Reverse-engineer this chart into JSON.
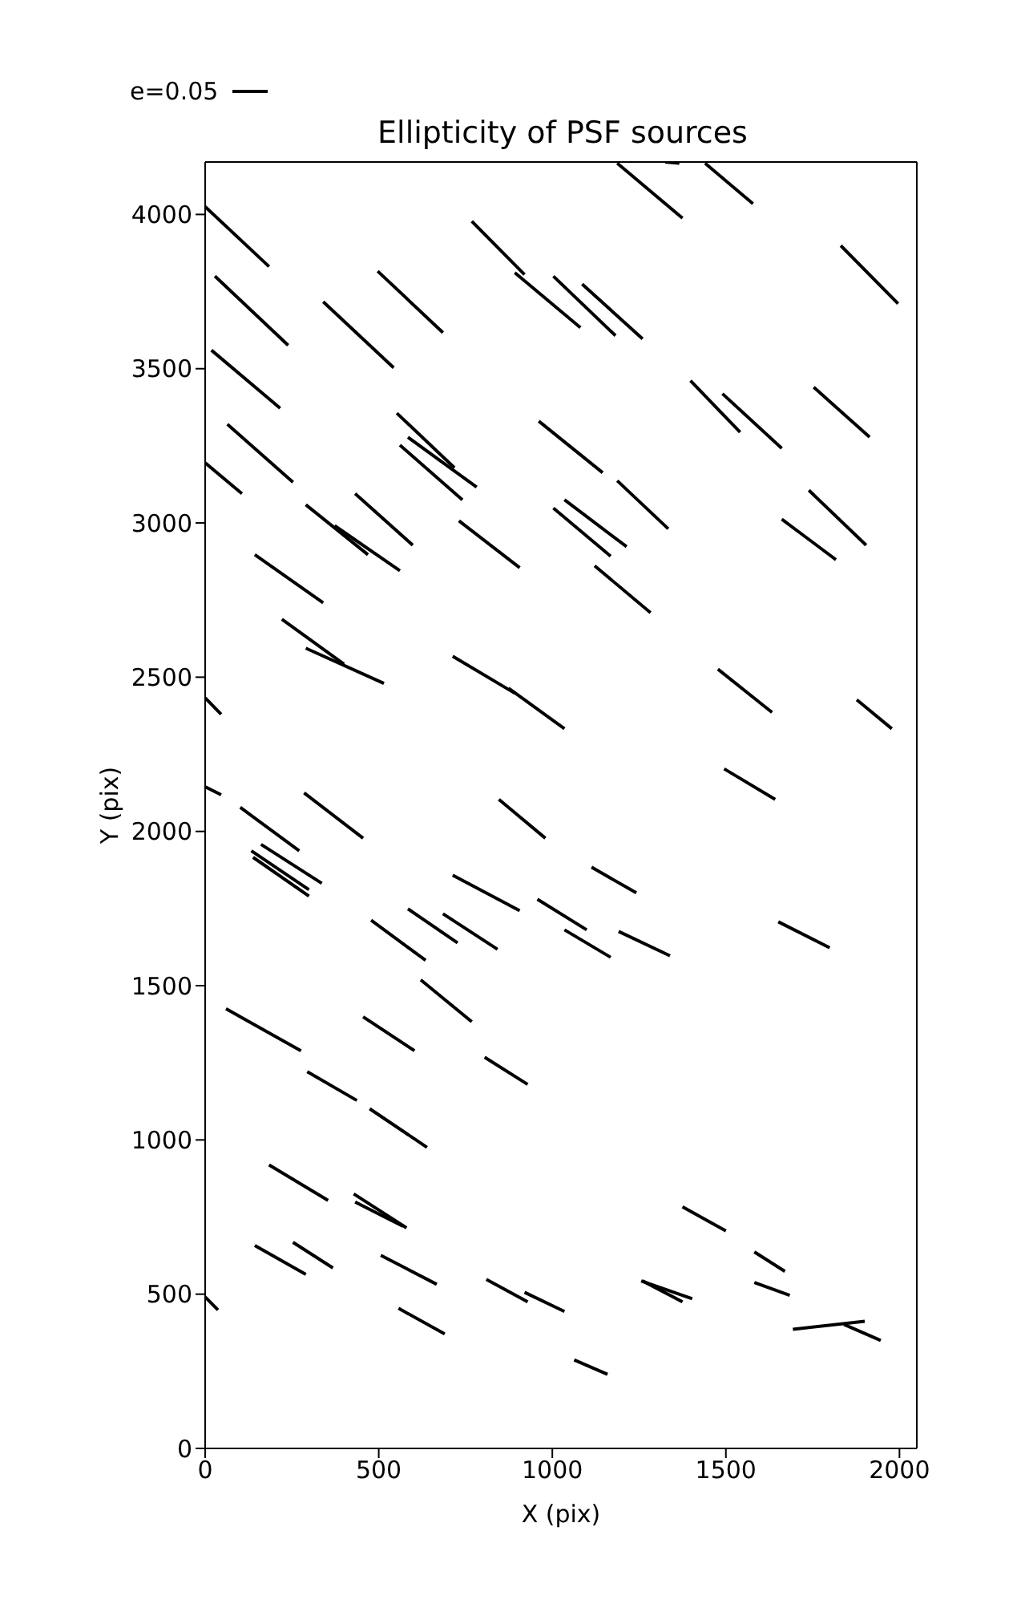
{
  "chart_data": {
    "type": "line",
    "title": "Ellipticity of PSF sources",
    "xlabel": "X (pix)",
    "ylabel": "Y (pix)",
    "annotations": [
      "e=0.05"
    ],
    "xlim": [
      0,
      2050
    ],
    "ylim": [
      0,
      4170
    ],
    "xticks": [
      0,
      500,
      1000,
      1500,
      2000
    ],
    "yticks": [
      0,
      500,
      1000,
      1500,
      2000,
      2500,
      3000,
      3500,
      4000
    ],
    "marker": "none",
    "series": [
      {
        "color": "#000000",
        "x": [
          0,
          184
        ],
        "values": [
          4025,
          3831
        ]
      },
      {
        "color": "#000000",
        "x": [
          28,
          239
        ],
        "values": [
          3800,
          3576
        ]
      },
      {
        "color": "#000000",
        "x": [
          18,
          216
        ],
        "values": [
          3560,
          3372
        ]
      },
      {
        "color": "#000000",
        "x": [
          64,
          253
        ],
        "values": [
          3320,
          3132
        ]
      },
      {
        "color": "#000000",
        "x": [
          0,
          106
        ],
        "values": [
          3195,
          3095
        ]
      },
      {
        "color": "#000000",
        "x": [
          340,
          543
        ],
        "values": [
          3717,
          3503
        ]
      },
      {
        "color": "#000000",
        "x": [
          497,
          685
        ],
        "values": [
          3816,
          3617
        ]
      },
      {
        "color": "#000000",
        "x": [
          552,
          718
        ],
        "values": [
          3356,
          3179
        ]
      },
      {
        "color": "#000000",
        "x": [
          584,
          782
        ],
        "values": [
          3278,
          3116
        ]
      },
      {
        "color": "#000000",
        "x": [
          561,
          741
        ],
        "values": [
          3252,
          3075
        ]
      },
      {
        "color": "#000000",
        "x": [
          290,
          469
        ],
        "values": [
          3059,
          2897
        ]
      },
      {
        "color": "#000000",
        "x": [
          373,
          561
        ],
        "values": [
          2991,
          2845
        ]
      },
      {
        "color": "#000000",
        "x": [
          432,
          598
        ],
        "values": [
          3095,
          2928
        ]
      },
      {
        "color": "#000000",
        "x": [
          731,
          906
        ],
        "values": [
          3007,
          2855
        ]
      },
      {
        "color": "#000000",
        "x": [
          143,
          340
        ],
        "values": [
          2897,
          2741
        ]
      },
      {
        "color": "#000000",
        "x": [
          768,
          920
        ],
        "values": [
          3978,
          3805
        ]
      },
      {
        "color": "#000000",
        "x": [
          892,
          1081
        ],
        "values": [
          3811,
          3633
        ]
      },
      {
        "color": "#000000",
        "x": [
          1003,
          1182
        ],
        "values": [
          3800,
          3607
        ]
      },
      {
        "color": "#000000",
        "x": [
          1086,
          1260
        ],
        "values": [
          3774,
          3597
        ]
      },
      {
        "color": "#000000",
        "x": [
          961,
          1145
        ],
        "values": [
          3330,
          3163
        ]
      },
      {
        "color": "#000000",
        "x": [
          1035,
          1214
        ],
        "values": [
          3075,
          2923
        ]
      },
      {
        "color": "#000000",
        "x": [
          1003,
          1168
        ],
        "values": [
          3048,
          2892
        ]
      },
      {
        "color": "#000000",
        "x": [
          1187,
          1334
        ],
        "values": [
          3137,
          2981
        ]
      },
      {
        "color": "#000000",
        "x": [
          1122,
          1283
        ],
        "values": [
          2861,
          2709
        ]
      },
      {
        "color": "#000000",
        "x": [
          1187,
          1375
        ],
        "values": [
          4166,
          3988
        ]
      },
      {
        "color": "#000000",
        "x": [
          1440,
          1578
        ],
        "values": [
          4166,
          4035
        ]
      },
      {
        "color": "#000000",
        "x": [
          1325,
          1366
        ],
        "values": [
          4170,
          4166
        ]
      },
      {
        "color": "#000000",
        "x": [
          1831,
          1996
        ],
        "values": [
          3899,
          3711
        ]
      },
      {
        "color": "#000000",
        "x": [
          1398,
          1541
        ],
        "values": [
          3461,
          3294
        ]
      },
      {
        "color": "#000000",
        "x": [
          1490,
          1661
        ],
        "values": [
          3419,
          3242
        ]
      },
      {
        "color": "#000000",
        "x": [
          1753,
          1914
        ],
        "values": [
          3440,
          3278
        ]
      },
      {
        "color": "#000000",
        "x": [
          1661,
          1817
        ],
        "values": [
          3012,
          2881
        ]
      },
      {
        "color": "#000000",
        "x": [
          1739,
          1904
        ],
        "values": [
          3106,
          2928
        ]
      },
      {
        "color": "#000000",
        "x": [
          221,
          400
        ],
        "values": [
          2688,
          2542
        ]
      },
      {
        "color": "#000000",
        "x": [
          290,
          515
        ],
        "values": [
          2594,
          2480
        ]
      },
      {
        "color": "#000000",
        "x": [
          0,
          46
        ],
        "values": [
          2433,
          2380
        ]
      },
      {
        "color": "#000000",
        "x": [
          713,
          892
        ],
        "values": [
          2568,
          2448
        ]
      },
      {
        "color": "#000000",
        "x": [
          874,
          1035
        ],
        "values": [
          2464,
          2333
        ]
      },
      {
        "color": "#000000",
        "x": [
          0,
          46
        ],
        "values": [
          2145,
          2119
        ]
      },
      {
        "color": "#000000",
        "x": [
          101,
          271
        ],
        "values": [
          2078,
          1937
        ]
      },
      {
        "color": "#000000",
        "x": [
          285,
          455
        ],
        "values": [
          2125,
          1978
        ]
      },
      {
        "color": "#000000",
        "x": [
          846,
          980
        ],
        "values": [
          2104,
          1978
        ]
      },
      {
        "color": "#000000",
        "x": [
          161,
          336
        ],
        "values": [
          1958,
          1832
        ]
      },
      {
        "color": "#000000",
        "x": [
          133,
          299
        ],
        "values": [
          1937,
          1811
        ]
      },
      {
        "color": "#000000",
        "x": [
          138,
          299
        ],
        "values": [
          1916,
          1790
        ]
      },
      {
        "color": "#000000",
        "x": [
          713,
          906
        ],
        "values": [
          1858,
          1743
        ]
      },
      {
        "color": "#000000",
        "x": [
          957,
          1099
        ],
        "values": [
          1780,
          1681
        ]
      },
      {
        "color": "#000000",
        "x": [
          1035,
          1168
        ],
        "values": [
          1681,
          1592
        ]
      },
      {
        "color": "#000000",
        "x": [
          478,
          635
        ],
        "values": [
          1712,
          1582
        ]
      },
      {
        "color": "#000000",
        "x": [
          584,
          727
        ],
        "values": [
          1749,
          1639
        ]
      },
      {
        "color": "#000000",
        "x": [
          685,
          842
        ],
        "values": [
          1733,
          1618
        ]
      },
      {
        "color": "#000000",
        "x": [
          621,
          768
        ],
        "values": [
          1519,
          1383
        ]
      },
      {
        "color": "#000000",
        "x": [
          60,
          276
        ],
        "values": [
          1425,
          1289
        ]
      },
      {
        "color": "#000000",
        "x": [
          455,
          603
        ],
        "values": [
          1399,
          1289
        ]
      },
      {
        "color": "#000000",
        "x": [
          1477,
          1633
        ],
        "values": [
          2526,
          2386
        ]
      },
      {
        "color": "#000000",
        "x": [
          1877,
          1978
        ],
        "values": [
          2427,
          2333
        ]
      },
      {
        "color": "#000000",
        "x": [
          1495,
          1642
        ],
        "values": [
          2203,
          2104
        ]
      },
      {
        "color": "#000000",
        "x": [
          1113,
          1242
        ],
        "values": [
          1884,
          1801
        ]
      },
      {
        "color": "#000000",
        "x": [
          1191,
          1339
        ],
        "values": [
          1676,
          1597
        ]
      },
      {
        "color": "#000000",
        "x": [
          1651,
          1799
        ],
        "values": [
          1707,
          1623
        ]
      },
      {
        "color": "#000000",
        "x": [
          805,
          929
        ],
        "values": [
          1268,
          1180
        ]
      },
      {
        "color": "#000000",
        "x": [
          294,
          437
        ],
        "values": [
          1221,
          1128
        ]
      },
      {
        "color": "#000000",
        "x": [
          474,
          639
        ],
        "values": [
          1101,
          976
        ]
      },
      {
        "color": "#000000",
        "x": [
          184,
          354
        ],
        "values": [
          919,
          804
        ]
      },
      {
        "color": "#000000",
        "x": [
          428,
          580
        ],
        "values": [
          825,
          715
        ]
      },
      {
        "color": "#000000",
        "x": [
          432,
          570
        ],
        "values": [
          799,
          720
        ]
      },
      {
        "color": "#000000",
        "x": [
          143,
          290
        ],
        "values": [
          658,
          564
        ]
      },
      {
        "color": "#000000",
        "x": [
          253,
          368
        ],
        "values": [
          668,
          585
        ]
      },
      {
        "color": "#000000",
        "x": [
          506,
          667
        ],
        "values": [
          626,
          532
        ]
      },
      {
        "color": "#000000",
        "x": [
          810,
          929
        ],
        "values": [
          548,
          475
        ]
      },
      {
        "color": "#000000",
        "x": [
          920,
          1035
        ],
        "values": [
          506,
          444
        ]
      },
      {
        "color": "#000000",
        "x": [
          0,
          37
        ],
        "values": [
          491,
          449
        ]
      },
      {
        "color": "#000000",
        "x": [
          557,
          690
        ],
        "values": [
          454,
          371
        ]
      },
      {
        "color": "#000000",
        "x": [
          1375,
          1500
        ],
        "values": [
          783,
          705
        ]
      },
      {
        "color": "#000000",
        "x": [
          1582,
          1670
        ],
        "values": [
          637,
          574
        ]
      },
      {
        "color": "#000000",
        "x": [
          1256,
          1403
        ],
        "values": [
          543,
          485
        ]
      },
      {
        "color": "#000000",
        "x": [
          1260,
          1375
        ],
        "values": [
          543,
          475
        ]
      },
      {
        "color": "#000000",
        "x": [
          1582,
          1684
        ],
        "values": [
          538,
          496
        ]
      },
      {
        "color": "#000000",
        "x": [
          1693,
          1900
        ],
        "values": [
          386,
          412
        ]
      },
      {
        "color": "#000000",
        "x": [
          1840,
          1946
        ],
        "values": [
          402,
          350
        ]
      },
      {
        "color": "#000000",
        "x": [
          1063,
          1159
        ],
        "values": [
          287,
          240
        ]
      }
    ]
  }
}
